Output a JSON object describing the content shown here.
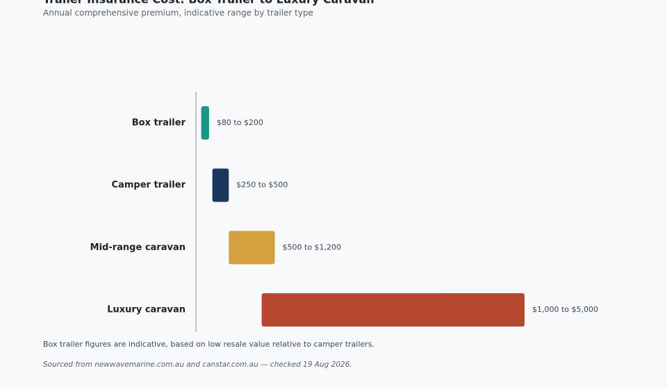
{
  "chart_data": {
    "type": "range-bar",
    "title": "Trailer Insurance Cost: Box Trailer to Luxury Caravan",
    "subtitle": "Annual comprehensive premium, indicative range by trailer type",
    "categories": [
      "Box trailer",
      "Camper trailer",
      "Mid-range caravan",
      "Luxury caravan"
    ],
    "low": [
      80,
      250,
      500,
      1000
    ],
    "high": [
      200,
      500,
      1200,
      5000
    ],
    "value_labels": [
      "$80 to $200",
      "$250 to $500",
      "$500 to $1,200",
      "$1,000 to $5,000"
    ],
    "colors": [
      "#1a9688",
      "#1b365d",
      "#d4a13f",
      "#b5482e"
    ],
    "xlim": [
      0,
      5000
    ],
    "note": "Box trailer figures are indicative, based on low resale value relative to camper trailers.",
    "source": "Sourced from newwavemarine.com.au and canstar.com.au — checked 19 Aug 2026."
  }
}
